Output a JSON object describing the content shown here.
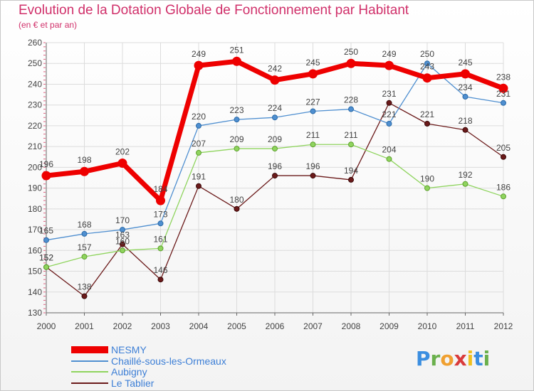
{
  "header": {
    "title": "Evolution de la Dotation Globale de Fonctionnement par Habitant",
    "subtitle": "(en € et par an)"
  },
  "chart_data": {
    "type": "line",
    "title": "Evolution de la Dotation Globale de Fonctionnement par Habitant",
    "subtitle": "(en € et par an)",
    "xlabel": "",
    "ylabel": "",
    "x": [
      "2000",
      "2001",
      "2002",
      "2003",
      "2004",
      "2005",
      "2006",
      "2007",
      "2008",
      "2009",
      "2010",
      "2011",
      "2012"
    ],
    "ylim": [
      130,
      260
    ],
    "yticks": [
      130,
      140,
      150,
      160,
      170,
      180,
      190,
      200,
      210,
      220,
      230,
      240,
      250,
      260
    ],
    "grid": true,
    "legend_position": "bottom-left",
    "series": [
      {
        "name": "NESMY",
        "color": "#ee0000",
        "values": [
          196,
          198,
          202,
          184,
          249,
          251,
          242,
          245,
          250,
          249,
          243,
          245,
          238
        ]
      },
      {
        "name": "Chaillé-sous-les-Ormeaux",
        "color": "#4f8fd0",
        "values": [
          165,
          168,
          170,
          173,
          220,
          223,
          224,
          227,
          228,
          221,
          250,
          234,
          231
        ]
      },
      {
        "name": "Aubigny",
        "color": "#8fd45e",
        "values": [
          152,
          157,
          160,
          161,
          207,
          209,
          209,
          211,
          211,
          204,
          190,
          192,
          186
        ]
      },
      {
        "name": "Le Tablier",
        "color": "#6b1a1a",
        "values": [
          152,
          138,
          163,
          146,
          191,
          180,
          196,
          196,
          194,
          231,
          221,
          218,
          205
        ]
      }
    ]
  },
  "logo": {
    "letters": [
      "P",
      "r",
      "o",
      "x",
      "i",
      "t",
      "i"
    ],
    "colors": [
      "#3b8ee0",
      "#6ab04c",
      "#f0a030",
      "#d93b3b",
      "#f0c020",
      "#3b8ee0",
      "#6ab04c"
    ]
  }
}
